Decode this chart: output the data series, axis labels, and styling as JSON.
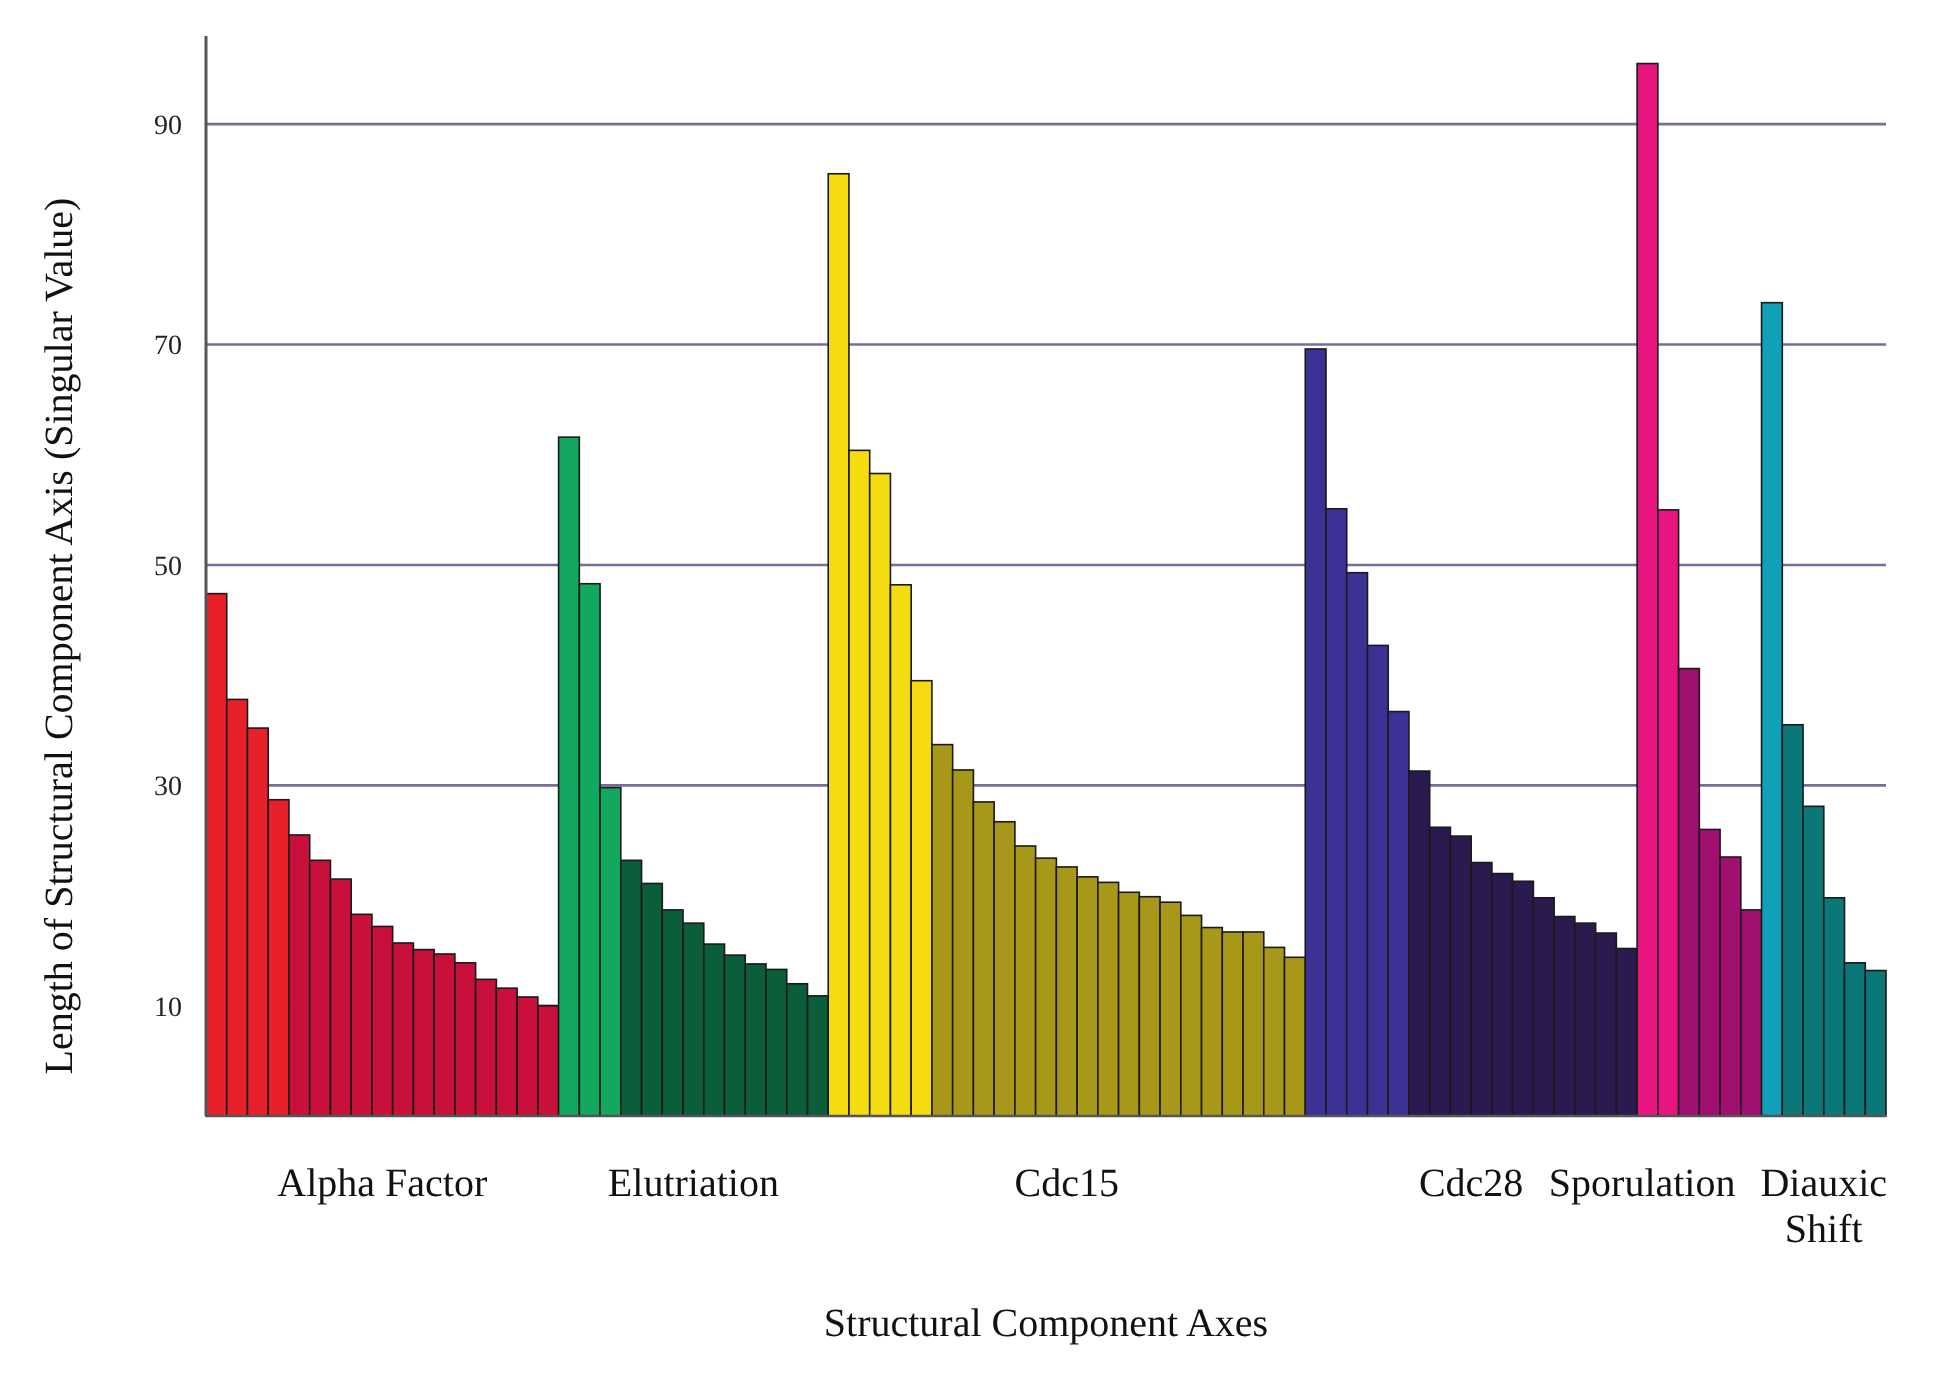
{
  "chart_data": {
    "type": "bar",
    "xlabel": "Structural Component Axes",
    "ylabel": "Length of Structural Component Axis (Singular Value)",
    "categories": [
      null,
      null,
      null,
      null,
      null,
      null,
      null,
      null,
      null,
      null,
      null,
      null,
      null,
      null,
      null,
      null,
      null,
      null,
      null,
      null,
      null,
      null,
      null,
      null,
      null,
      null,
      null,
      null,
      null,
      null,
      null,
      null,
      null,
      null,
      null,
      null,
      null,
      null,
      null,
      null,
      null,
      null,
      null,
      null,
      null,
      null,
      null,
      null,
      null,
      null,
      null,
      null,
      null,
      null,
      null,
      null,
      null,
      null,
      null,
      null,
      null,
      null,
      null,
      null,
      null,
      null,
      null,
      null,
      null,
      null,
      null,
      null,
      null,
      null,
      null,
      null,
      null,
      null,
      null,
      null,
      null
    ],
    "ylim": [
      0,
      98
    ],
    "yticks": [
      10,
      30,
      50,
      70,
      90
    ],
    "grid": "y",
    "series": [
      {
        "name": "Alpha Factor",
        "values": [
          47.4,
          37.8,
          35.2,
          28.7,
          25.5,
          23.2,
          21.5,
          18.3,
          17.2,
          15.7,
          15.1,
          14.7,
          13.9,
          12.4,
          11.6,
          10.8,
          10.0,
          null,
          null,
          null,
          null,
          null,
          null,
          null,
          null,
          null,
          null,
          null,
          null,
          null,
          null,
          null,
          null,
          null,
          null,
          null,
          null,
          null,
          null,
          null,
          null,
          null,
          null,
          null,
          null,
          null,
          null,
          null,
          null,
          null,
          null,
          null,
          null,
          null,
          null,
          null,
          null,
          null,
          null,
          null,
          null,
          null,
          null,
          null,
          null,
          null,
          null,
          null,
          null,
          null,
          null,
          null,
          null,
          null,
          null,
          null,
          null,
          null,
          null,
          null,
          null
        ],
        "colors": [
          "#e8202a",
          "#e8202a",
          "#e8202a",
          "#e8202a",
          "#c8103a",
          "#c8103a",
          "#c8103a",
          "#c8103a",
          "#c8103a",
          "#c8103a",
          "#c8103a",
          "#c8103a",
          "#c8103a",
          "#c8103a",
          "#c8103a",
          "#c8103a",
          "#c8103a",
          null,
          null,
          null,
          null,
          null,
          null,
          null,
          null,
          null,
          null,
          null,
          null,
          null,
          null,
          null,
          null,
          null,
          null,
          null,
          null,
          null,
          null,
          null,
          null,
          null,
          null,
          null,
          null,
          null,
          null,
          null,
          null,
          null,
          null,
          null,
          null,
          null,
          null,
          null,
          null,
          null,
          null,
          null,
          null,
          null,
          null,
          null,
          null,
          null,
          null,
          null,
          null,
          null,
          null,
          null,
          null,
          null,
          null,
          null,
          null,
          null,
          null,
          null,
          null
        ]
      },
      {
        "name": "Elutriation",
        "values": [
          null,
          null,
          null,
          null,
          null,
          null,
          null,
          null,
          null,
          null,
          null,
          null,
          null,
          null,
          null,
          null,
          null,
          61.6,
          48.3,
          29.8,
          23.2,
          21.1,
          18.7,
          17.5,
          15.6,
          14.6,
          13.8,
          13.3,
          12.0,
          10.9,
          null,
          null,
          null,
          null,
          null,
          null,
          null,
          null,
          null,
          null,
          null,
          null,
          null,
          null,
          null,
          null,
          null,
          null,
          null,
          null,
          null,
          null,
          null,
          null,
          null,
          null,
          null,
          null,
          null,
          null,
          null,
          null,
          null,
          null,
          null,
          null,
          null,
          null,
          null,
          null,
          null,
          null,
          null,
          null,
          null,
          null,
          null,
          null,
          null,
          null,
          null
        ],
        "colors": [
          null,
          null,
          null,
          null,
          null,
          null,
          null,
          null,
          null,
          null,
          null,
          null,
          null,
          null,
          null,
          null,
          null,
          "#12a860",
          "#12a860",
          "#12a860",
          "#0a5e3a",
          "#0a5e3a",
          "#0a5e3a",
          "#0a5e3a",
          "#0a5e3a",
          "#0a5e3a",
          "#0a5e3a",
          "#0a5e3a",
          "#0a5e3a",
          "#0a5e3a",
          null,
          null,
          null,
          null,
          null,
          null,
          null,
          null,
          null,
          null,
          null,
          null,
          null,
          null,
          null,
          null,
          null,
          null,
          null,
          null,
          null,
          null,
          null,
          null,
          null,
          null,
          null,
          null,
          null,
          null,
          null,
          null,
          null,
          null,
          null,
          null,
          null,
          null,
          null,
          null,
          null,
          null,
          null,
          null,
          null,
          null,
          null,
          null,
          null,
          null,
          null
        ]
      },
      {
        "name": "Cdc15",
        "values": [
          null,
          null,
          null,
          null,
          null,
          null,
          null,
          null,
          null,
          null,
          null,
          null,
          null,
          null,
          null,
          null,
          null,
          null,
          null,
          null,
          null,
          null,
          null,
          null,
          null,
          null,
          null,
          null,
          null,
          null,
          85.5,
          60.4,
          58.3,
          48.2,
          39.5,
          33.7,
          31.4,
          28.5,
          26.7,
          24.5,
          23.4,
          22.6,
          21.7,
          21.2,
          20.3,
          19.9,
          19.4,
          18.2,
          17.1,
          16.7,
          16.7,
          15.3,
          14.4,
          null,
          null,
          null,
          null,
          null,
          null,
          null,
          null,
          null,
          null,
          null,
          null,
          null,
          null,
          null,
          null,
          null,
          null,
          null,
          null,
          null,
          null,
          null,
          null,
          null,
          null,
          null,
          null
        ],
        "colors": [
          null,
          null,
          null,
          null,
          null,
          null,
          null,
          null,
          null,
          null,
          null,
          null,
          null,
          null,
          null,
          null,
          null,
          null,
          null,
          null,
          null,
          null,
          null,
          null,
          null,
          null,
          null,
          null,
          null,
          null,
          "#f5dc10",
          "#f5dc10",
          "#f5dc10",
          "#f5dc10",
          "#f5dc10",
          "#a8981a",
          "#a8981a",
          "#a8981a",
          "#a8981a",
          "#a8981a",
          "#a8981a",
          "#a8981a",
          "#a8981a",
          "#a8981a",
          "#a8981a",
          "#a8981a",
          "#a8981a",
          "#a8981a",
          "#a8981a",
          "#a8981a",
          "#a8981a",
          "#a8981a",
          "#a8981a",
          null,
          null,
          null,
          null,
          null,
          null,
          null,
          null,
          null,
          null,
          null,
          null,
          null,
          null,
          null,
          null,
          null,
          null,
          null,
          null,
          null,
          null,
          null,
          null,
          null,
          null,
          null,
          null
        ]
      },
      {
        "name": "Cdc28",
        "values": [
          null,
          null,
          null,
          null,
          null,
          null,
          null,
          null,
          null,
          null,
          null,
          null,
          null,
          null,
          null,
          null,
          null,
          null,
          null,
          null,
          null,
          null,
          null,
          null,
          null,
          null,
          null,
          null,
          null,
          null,
          null,
          null,
          null,
          null,
          null,
          null,
          null,
          null,
          null,
          null,
          null,
          null,
          null,
          null,
          null,
          null,
          null,
          null,
          null,
          null,
          null,
          null,
          null,
          69.6,
          55.1,
          49.3,
          42.7,
          36.7,
          31.3,
          26.2,
          25.4,
          23.0,
          22.0,
          21.3,
          19.8,
          18.1,
          17.5,
          16.6,
          15.2,
          null,
          null,
          null,
          null,
          null,
          null,
          null,
          null,
          null,
          null,
          null,
          null
        ],
        "colors": [
          null,
          null,
          null,
          null,
          null,
          null,
          null,
          null,
          null,
          null,
          null,
          null,
          null,
          null,
          null,
          null,
          null,
          null,
          null,
          null,
          null,
          null,
          null,
          null,
          null,
          null,
          null,
          null,
          null,
          null,
          null,
          null,
          null,
          null,
          null,
          null,
          null,
          null,
          null,
          null,
          null,
          null,
          null,
          null,
          null,
          null,
          null,
          null,
          null,
          null,
          null,
          null,
          null,
          "#3c3296",
          "#3c3296",
          "#3c3296",
          "#3c3296",
          "#3c3296",
          "#2a1a50",
          "#2a1a50",
          "#2a1a50",
          "#2a1a50",
          "#2a1a50",
          "#2a1a50",
          "#2a1a50",
          "#2a1a50",
          "#2a1a50",
          "#2a1a50",
          "#2a1a50",
          null,
          null,
          null,
          null,
          null,
          null,
          null,
          null,
          null,
          null,
          null,
          null
        ]
      },
      {
        "name": "Sporulation",
        "values": [
          null,
          null,
          null,
          null,
          null,
          null,
          null,
          null,
          null,
          null,
          null,
          null,
          null,
          null,
          null,
          null,
          null,
          null,
          null,
          null,
          null,
          null,
          null,
          null,
          null,
          null,
          null,
          null,
          null,
          null,
          null,
          null,
          null,
          null,
          null,
          null,
          null,
          null,
          null,
          null,
          null,
          null,
          null,
          null,
          null,
          null,
          null,
          null,
          null,
          null,
          null,
          null,
          null,
          null,
          null,
          null,
          null,
          null,
          null,
          null,
          null,
          null,
          null,
          null,
          null,
          null,
          null,
          null,
          null,
          95.5,
          55.0,
          40.6,
          26.0,
          23.5,
          18.7,
          null,
          null,
          null,
          null,
          null,
          null
        ],
        "colors": [
          null,
          null,
          null,
          null,
          null,
          null,
          null,
          null,
          null,
          null,
          null,
          null,
          null,
          null,
          null,
          null,
          null,
          null,
          null,
          null,
          null,
          null,
          null,
          null,
          null,
          null,
          null,
          null,
          null,
          null,
          null,
          null,
          null,
          null,
          null,
          null,
          null,
          null,
          null,
          null,
          null,
          null,
          null,
          null,
          null,
          null,
          null,
          null,
          null,
          null,
          null,
          null,
          null,
          null,
          null,
          null,
          null,
          null,
          null,
          null,
          null,
          null,
          null,
          null,
          null,
          null,
          null,
          null,
          null,
          "#e8147f",
          "#e8147f",
          "#a01070",
          "#a01070",
          "#a01070",
          "#a01070",
          null,
          null,
          null,
          null,
          null,
          null
        ]
      },
      {
        "name": "Diauxic Shift",
        "values": [
          null,
          null,
          null,
          null,
          null,
          null,
          null,
          null,
          null,
          null,
          null,
          null,
          null,
          null,
          null,
          null,
          null,
          null,
          null,
          null,
          null,
          null,
          null,
          null,
          null,
          null,
          null,
          null,
          null,
          null,
          null,
          null,
          null,
          null,
          null,
          null,
          null,
          null,
          null,
          null,
          null,
          null,
          null,
          null,
          null,
          null,
          null,
          null,
          null,
          null,
          null,
          null,
          null,
          null,
          null,
          null,
          null,
          null,
          null,
          null,
          null,
          null,
          null,
          null,
          null,
          null,
          null,
          null,
          null,
          null,
          null,
          null,
          null,
          null,
          null,
          73.8,
          35.5,
          28.1,
          19.8,
          13.9,
          13.2
        ],
        "colors": [
          null,
          null,
          null,
          null,
          null,
          null,
          null,
          null,
          null,
          null,
          null,
          null,
          null,
          null,
          null,
          null,
          null,
          null,
          null,
          null,
          null,
          null,
          null,
          null,
          null,
          null,
          null,
          null,
          null,
          null,
          null,
          null,
          null,
          null,
          null,
          null,
          null,
          null,
          null,
          null,
          null,
          null,
          null,
          null,
          null,
          null,
          null,
          null,
          null,
          null,
          null,
          null,
          null,
          null,
          null,
          null,
          null,
          null,
          null,
          null,
          null,
          null,
          null,
          null,
          null,
          null,
          null,
          null,
          null,
          null,
          null,
          null,
          null,
          null,
          null,
          "#10a0b8",
          "#0a7878",
          "#0a7878",
          "#0a7878",
          "#0a7878",
          "#0a7878"
        ]
      }
    ]
  }
}
